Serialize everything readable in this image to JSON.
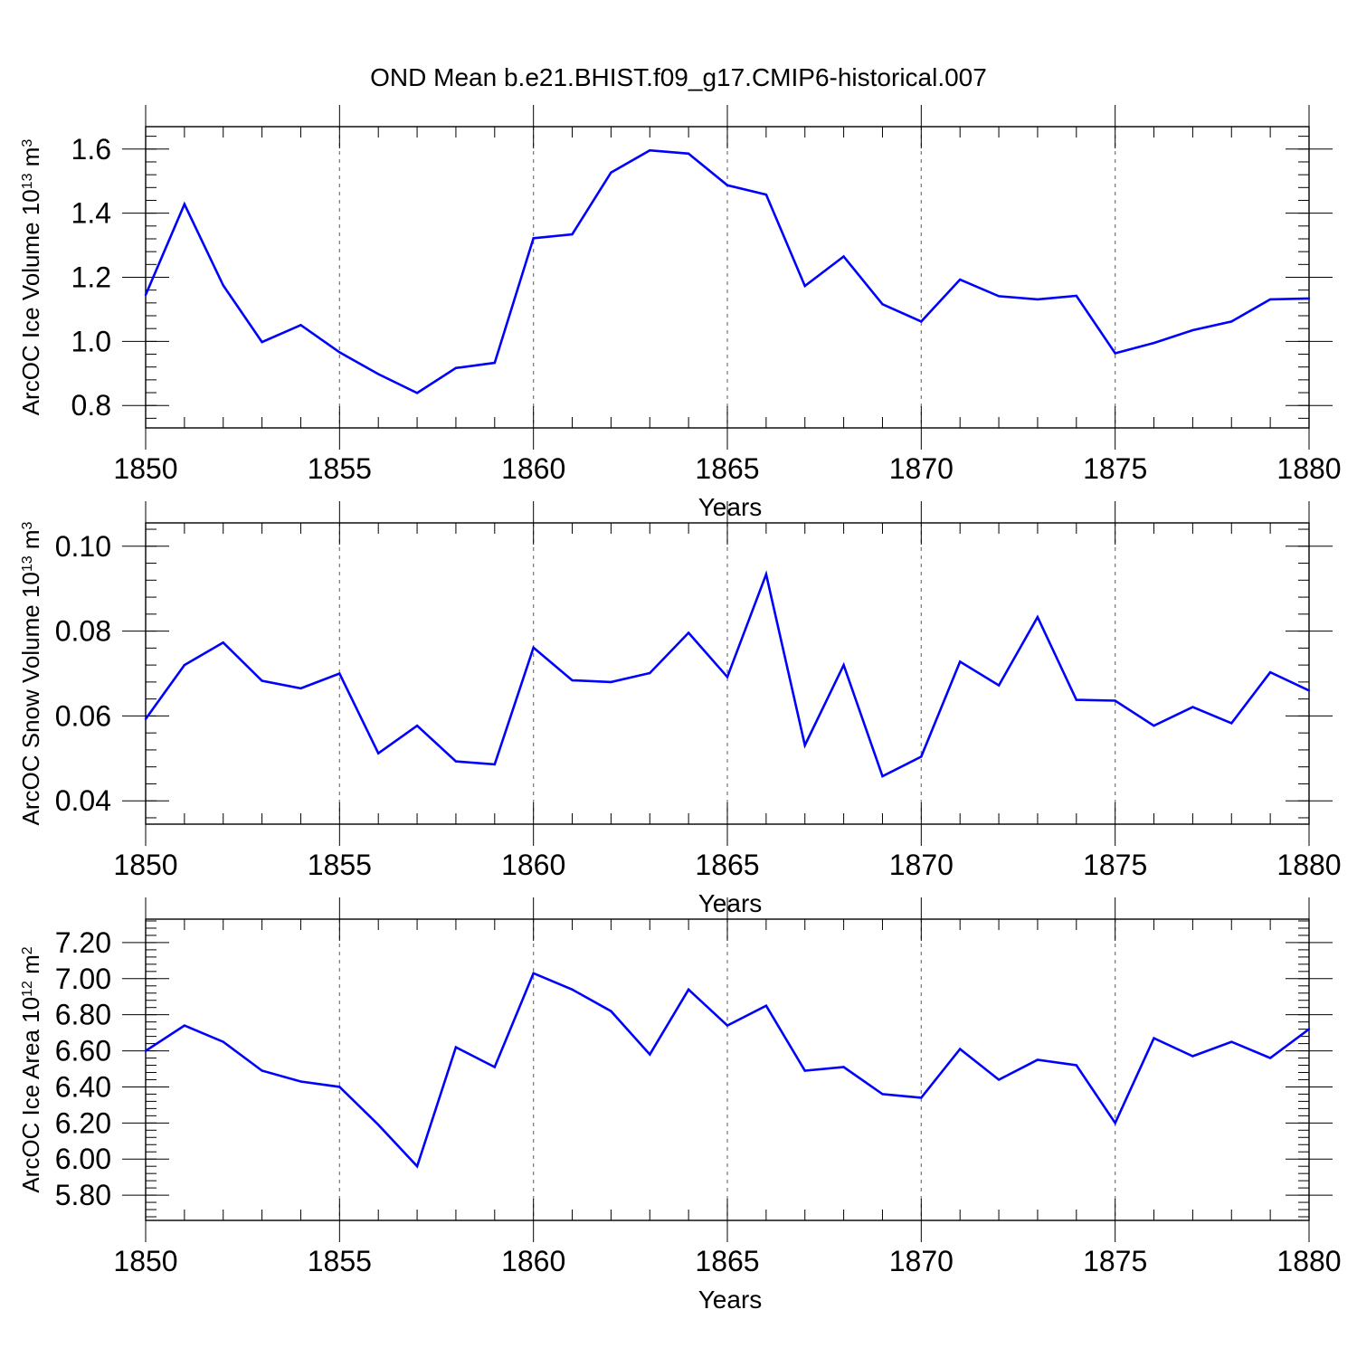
{
  "title": "OND Mean b.e21.BHIST.f09_g17.CMIP6-historical.007",
  "colors": {
    "line": "#0000ff",
    "axis": "#000000",
    "grid": "#808080",
    "background": "#ffffff"
  },
  "chart_data": [
    {
      "type": "line",
      "title": "OND Mean b.e21.BHIST.f09_g17.CMIP6-historical.007",
      "xlabel": "Years",
      "ylabel": {
        "main": "ArcOC Ice Volume 10",
        "exp": "13",
        "unit": " m",
        "unit_exp": "3"
      },
      "xlim": [
        1850,
        1880
      ],
      "ylim": [
        0.73,
        1.67
      ],
      "xticks": [
        "1850",
        "1855",
        "1860",
        "1865",
        "1870",
        "1875",
        "1880"
      ],
      "yticks": [
        "0.8",
        "1.0",
        "1.2",
        "1.4",
        "1.6"
      ],
      "ytick_values": [
        0.8,
        1.0,
        1.2,
        1.4,
        1.6
      ],
      "grid": "dashed vertical at major x ticks",
      "series": [
        {
          "name": "ArcOC Ice Volume",
          "x": [
            1850,
            1851,
            1852,
            1853,
            1854,
            1855,
            1856,
            1857,
            1858,
            1859,
            1860,
            1861,
            1862,
            1863,
            1864,
            1865,
            1866,
            1867,
            1868,
            1869,
            1870,
            1871,
            1872,
            1873,
            1874,
            1875,
            1876,
            1877,
            1878,
            1879,
            1880
          ],
          "values": [
            1.145,
            1.428,
            1.175,
            0.998,
            1.051,
            0.966,
            0.898,
            0.839,
            0.917,
            0.933,
            1.322,
            1.334,
            1.527,
            1.596,
            1.586,
            1.487,
            1.458,
            1.173,
            1.265,
            1.116,
            1.062,
            1.193,
            1.141,
            1.131,
            1.142,
            0.963,
            0.995,
            1.035,
            1.062,
            1.131,
            1.134
          ]
        }
      ]
    },
    {
      "type": "line",
      "xlabel": "Years",
      "ylabel": {
        "main": "ArcOC Snow Volume 10",
        "exp": "13",
        "unit": " m",
        "unit_exp": "3"
      },
      "xlim": [
        1850,
        1880
      ],
      "ylim": [
        0.0345,
        0.1055
      ],
      "xticks": [
        "1850",
        "1855",
        "1860",
        "1865",
        "1870",
        "1875",
        "1880"
      ],
      "yticks": [
        "0.04",
        "0.06",
        "0.08",
        "0.10"
      ],
      "ytick_values": [
        0.04,
        0.06,
        0.08,
        0.1
      ],
      "grid": "dashed vertical at major x ticks",
      "series": [
        {
          "name": "ArcOC Snow Volume",
          "x": [
            1850,
            1851,
            1852,
            1853,
            1854,
            1855,
            1856,
            1857,
            1858,
            1859,
            1860,
            1861,
            1862,
            1863,
            1864,
            1865,
            1866,
            1867,
            1868,
            1869,
            1870,
            1871,
            1872,
            1873,
            1874,
            1875,
            1876,
            1877,
            1878,
            1879,
            1880
          ],
          "values": [
            0.0593,
            0.072,
            0.0773,
            0.0683,
            0.0665,
            0.07,
            0.0512,
            0.0577,
            0.0493,
            0.0486,
            0.0761,
            0.0684,
            0.068,
            0.0701,
            0.0796,
            0.0692,
            0.0934,
            0.0531,
            0.072,
            0.0458,
            0.0504,
            0.0728,
            0.0672,
            0.0833,
            0.0638,
            0.0636,
            0.0577,
            0.0621,
            0.0583,
            0.0703,
            0.066
          ]
        }
      ]
    },
    {
      "type": "line",
      "xlabel": "Years",
      "ylabel": {
        "main": "ArcOC Ice Area 10",
        "exp": "12",
        "unit": " m",
        "unit_exp": "2"
      },
      "xlim": [
        1850,
        1880
      ],
      "ylim": [
        5.66,
        7.33
      ],
      "xticks": [
        "1850",
        "1855",
        "1860",
        "1865",
        "1870",
        "1875",
        "1880"
      ],
      "yticks": [
        "5.80",
        "6.00",
        "6.20",
        "6.40",
        "6.60",
        "6.80",
        "7.00",
        "7.20"
      ],
      "ytick_values": [
        5.8,
        6.0,
        6.2,
        6.4,
        6.6,
        6.8,
        7.0,
        7.2
      ],
      "grid": "dashed vertical at major x ticks",
      "series": [
        {
          "name": "ArcOC Ice Area",
          "x": [
            1850,
            1851,
            1852,
            1853,
            1854,
            1855,
            1856,
            1857,
            1858,
            1859,
            1860,
            1861,
            1862,
            1863,
            1864,
            1865,
            1866,
            1867,
            1868,
            1869,
            1870,
            1871,
            1872,
            1873,
            1874,
            1875,
            1876,
            1877,
            1878,
            1879,
            1880
          ],
          "values": [
            6.6,
            6.74,
            6.65,
            6.49,
            6.43,
            6.4,
            6.19,
            5.96,
            6.62,
            6.51,
            7.03,
            6.94,
            6.82,
            6.58,
            6.94,
            6.74,
            6.85,
            6.49,
            6.51,
            6.36,
            6.34,
            6.61,
            6.44,
            6.55,
            6.52,
            6.2,
            6.67,
            6.57,
            6.65,
            6.56,
            6.72
          ]
        }
      ]
    }
  ]
}
